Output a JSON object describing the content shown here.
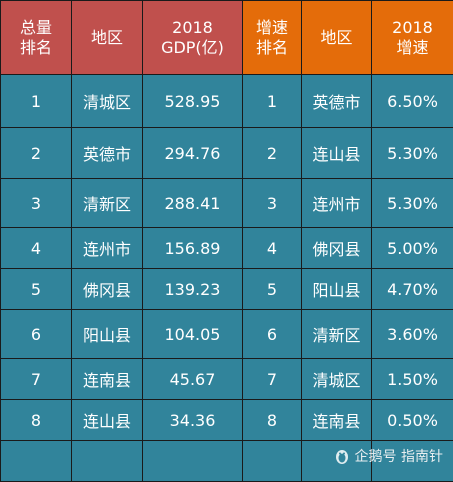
{
  "headers": [
    {
      "line1": "总量",
      "line2": "排名"
    },
    {
      "line1": "地区",
      "line2": ""
    },
    {
      "line1": "2018",
      "line2": "GDP(亿)"
    },
    {
      "line1": "增速",
      "line2": "排名"
    },
    {
      "line1": "地区",
      "line2": ""
    },
    {
      "line1": "2018",
      "line2": "增速"
    }
  ],
  "rows": [
    {
      "rank": "1",
      "region": "清城区",
      "gdp": "528.95",
      "growth_rank": "1",
      "growth_region": "英德市",
      "growth": "6.50%"
    },
    {
      "rank": "2",
      "region": "英德市",
      "gdp": "294.76",
      "growth_rank": "2",
      "growth_region": "连山县",
      "growth": "5.30%"
    },
    {
      "rank": "3",
      "region": "清新区",
      "gdp": "288.41",
      "growth_rank": "3",
      "growth_region": "连州市",
      "growth": "5.30%"
    },
    {
      "rank": "4",
      "region": "连州市",
      "gdp": "156.89",
      "growth_rank": "4",
      "growth_region": "佛冈县",
      "growth": "5.00%"
    },
    {
      "rank": "5",
      "region": "佛冈县",
      "gdp": "139.23",
      "growth_rank": "5",
      "growth_region": "阳山县",
      "growth": "4.70%"
    },
    {
      "rank": "6",
      "region": "阳山县",
      "gdp": "104.05",
      "growth_rank": "6",
      "growth_region": "清新区",
      "growth": "3.60%"
    },
    {
      "rank": "7",
      "region": "连南县",
      "gdp": "45.67",
      "growth_rank": "7",
      "growth_region": "清城区",
      "growth": "1.50%"
    },
    {
      "rank": "8",
      "region": "连山县",
      "gdp": "34.36",
      "growth_rank": "8",
      "growth_region": "连南县",
      "growth": "0.50%"
    }
  ],
  "watermark": {
    "text": "企鹅号 指南针",
    "icon": "penguin-icon"
  },
  "colors": {
    "header_left": "#c0504d",
    "header_right": "#e46c0a",
    "cell_bg": "#31849b",
    "border": "#1a1a1a"
  }
}
